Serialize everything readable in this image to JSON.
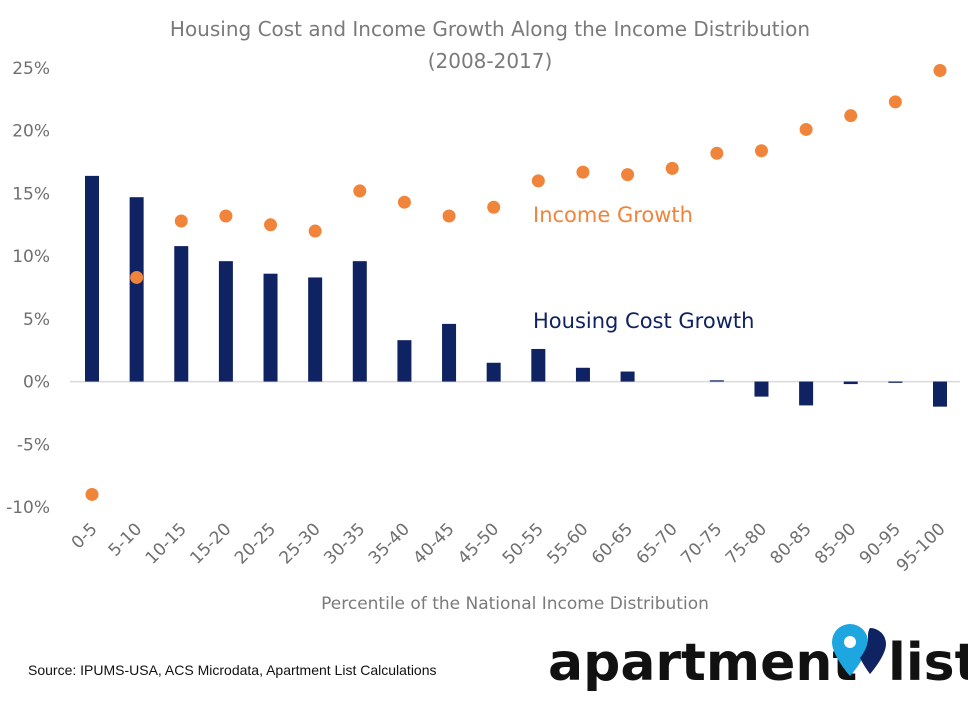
{
  "chart_data": {
    "type": "bar",
    "title": "Housing Cost and Income Growth Along the Income Distribution",
    "subtitle": "(2008-2017)",
    "xlabel": "Percentile of the National Income Distribution",
    "ylabel": "",
    "ylim": [
      -10,
      25
    ],
    "yticks": [
      25,
      20,
      15,
      10,
      5,
      0,
      -5,
      -10
    ],
    "ytick_labels": [
      "25%",
      "20%",
      "15%",
      "10%",
      "5%",
      "0%",
      "-5%",
      "-10%"
    ],
    "categories": [
      "0-5",
      "5-10",
      "10-15",
      "15-20",
      "20-25",
      "25-30",
      "30-35",
      "35-40",
      "40-45",
      "45-50",
      "50-55",
      "55-60",
      "60-65",
      "65-70",
      "70-75",
      "75-80",
      "80-85",
      "85-90",
      "90-95",
      "95-100"
    ],
    "grid": false,
    "series": [
      {
        "name": "Housing Cost Growth",
        "type": "bar",
        "color": "#0f2261",
        "values": [
          16.4,
          14.7,
          10.8,
          9.6,
          8.6,
          8.3,
          9.6,
          3.3,
          4.6,
          1.5,
          2.6,
          1.1,
          0.8,
          0.0,
          0.1,
          -1.2,
          -1.9,
          -0.2,
          -0.1,
          -2.0
        ]
      },
      {
        "name": "Income Growth",
        "type": "scatter",
        "color": "#f0843a",
        "values": [
          -9.0,
          8.3,
          12.8,
          13.2,
          12.5,
          12.0,
          15.2,
          14.3,
          13.2,
          13.9,
          16.0,
          16.7,
          16.5,
          17.0,
          18.2,
          18.4,
          20.1,
          21.2,
          22.3,
          24.8
        ]
      }
    ]
  },
  "footer": {
    "source": "Source: IPUMS-USA, ACS Microdata, Apartment List Calculations",
    "logo_word1": "apartment",
    "logo_word2": "list",
    "logo_pin_color": "#1ea6e0",
    "logo_dark_color": "#0f2261"
  }
}
